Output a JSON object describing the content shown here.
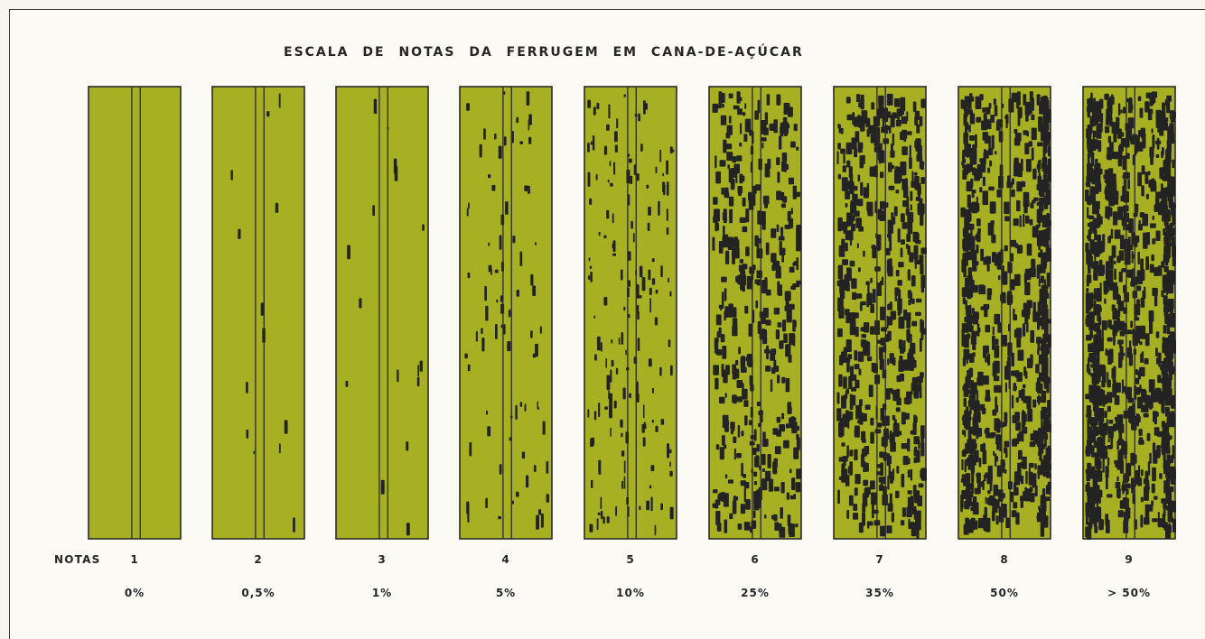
{
  "title": "ESCALA DE NOTAS DA FERRUGEM EM CANA-DE-AÇÚCAR",
  "row_label": "NOTAS",
  "colors": {
    "leaf": "#a7b023",
    "spot": "#232323",
    "outline": "#2a2a2a"
  },
  "leaves": [
    {
      "nota": "1",
      "percent": "0%",
      "severity": 0
    },
    {
      "nota": "2",
      "percent": "0,5%",
      "severity": 0.5
    },
    {
      "nota": "3",
      "percent": "1%",
      "severity": 1
    },
    {
      "nota": "4",
      "percent": "5%",
      "severity": 5
    },
    {
      "nota": "5",
      "percent": "10%",
      "severity": 10
    },
    {
      "nota": "6",
      "percent": "25%",
      "severity": 25
    },
    {
      "nota": "7",
      "percent": "35%",
      "severity": 35
    },
    {
      "nota": "8",
      "percent": "50%",
      "severity": 50
    },
    {
      "nota": "9",
      "percent": "> 50%",
      "severity": 65
    }
  ]
}
